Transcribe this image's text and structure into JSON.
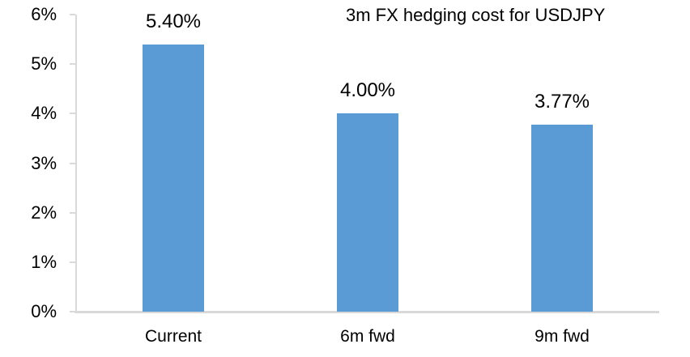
{
  "chart_data": {
    "type": "bar",
    "title": "3m FX hedging cost for USDJPY",
    "categories": [
      "Current",
      "6m fwd",
      "9m fwd"
    ],
    "values": [
      5.4,
      4.0,
      3.77
    ],
    "data_labels": [
      "5.40%",
      "4.00%",
      "3.77%"
    ],
    "xlabel": "",
    "ylabel": "",
    "ylim": [
      0,
      6
    ],
    "ytick_step": 1,
    "ytick_labels": [
      "0%",
      "1%",
      "2%",
      "3%",
      "4%",
      "5%",
      "6%"
    ],
    "grid": false,
    "legend_position": "none",
    "colors": {
      "bar": "#5B9BD5",
      "axis": "#D9D9D9",
      "text": "#000000",
      "background": "#FFFFFF"
    }
  }
}
